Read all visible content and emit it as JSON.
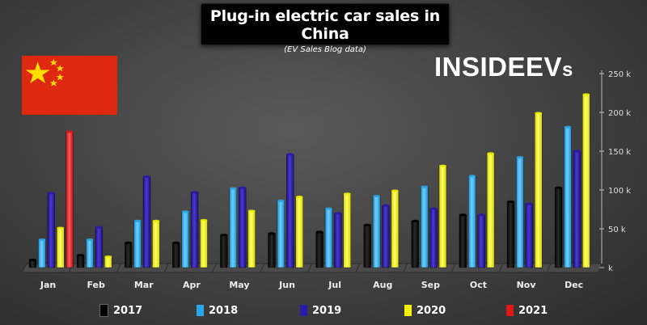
{
  "title": "Plug-in electric car sales in China",
  "subtitle": "(EV Sales Blog data)",
  "brand": {
    "main": "INSIDEEV",
    "suffix": "s"
  },
  "colors": {
    "background": "#404040",
    "title_box": "#000000",
    "2017": "#000000",
    "2018": "#29a8e8",
    "2019": "#2a1aa8",
    "2020": "#f2f200",
    "2021": "#e01818",
    "flag_red": "#de2910",
    "flag_star": "#ffde00",
    "logo_green": "#17c26b"
  },
  "icons": {
    "flag": "china-flag-icon",
    "logo": "insideevs-logo"
  },
  "chart_data": {
    "type": "bar",
    "title": "Plug-in electric car sales in China",
    "subtitle": "(EV Sales Blog data)",
    "categories": [
      "Jan",
      "Feb",
      "Mar",
      "Apr",
      "May",
      "Jun",
      "Jul",
      "Aug",
      "Sep",
      "Oct",
      "Nov",
      "Dec"
    ],
    "series": [
      {
        "name": "2017",
        "values": [
          10,
          16,
          32,
          32,
          42,
          44,
          46,
          55,
          60,
          68,
          85,
          103
        ]
      },
      {
        "name": "2018",
        "values": [
          36,
          36,
          60,
          72,
          102,
          86,
          76,
          92,
          104,
          118,
          142,
          181
        ]
      },
      {
        "name": "2019",
        "values": [
          96,
          52,
          117,
          97,
          103,
          146,
          70,
          80,
          76,
          68,
          82,
          150
        ]
      },
      {
        "name": "2020",
        "values": [
          51,
          14,
          60,
          61,
          73,
          91,
          95,
          99,
          131,
          147,
          199,
          223
        ]
      },
      {
        "name": "2021",
        "values": [
          175,
          null,
          null,
          null,
          null,
          null,
          null,
          null,
          null,
          null,
          null,
          null
        ]
      }
    ],
    "yticks": [
      0,
      50,
      100,
      150,
      200,
      250
    ],
    "ytick_labels": [
      "k",
      "50 k",
      "100 k",
      "150 k",
      "200 k",
      "250 k"
    ],
    "ylim": [
      0,
      255
    ],
    "xlabel": "",
    "ylabel": "",
    "axis_side": "right",
    "grid": false,
    "legend_position": "bottom"
  }
}
